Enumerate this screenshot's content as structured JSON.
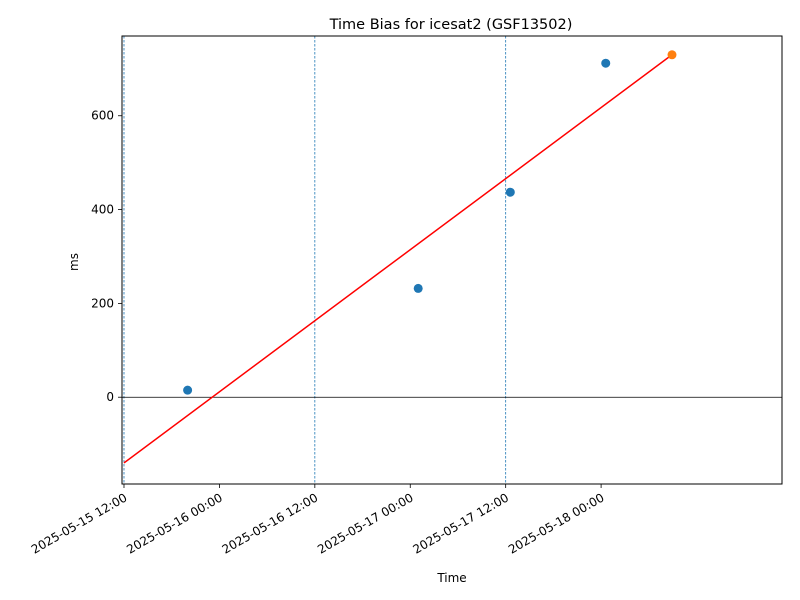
{
  "chart_data": {
    "type": "scatter",
    "title": "Time Bias for icesat2 (GSF13502)",
    "xlabel": "Time",
    "ylabel": "ms",
    "x_tick_labels": [
      "2025-05-15 12:00",
      "2025-05-16 00:00",
      "2025-05-16 12:00",
      "2025-05-17 00:00",
      "2025-05-17 12:00",
      "2025-05-18 00:00"
    ],
    "y_ticks": [
      0,
      200,
      400,
      600
    ],
    "y_tick_labels": [
      "0",
      "200",
      "400",
      "600"
    ],
    "x_range": [
      "2025-05-15 11:45",
      "2025-05-18 22:45"
    ],
    "ylim": [
      -185,
      770
    ],
    "vertical_markers": [
      "2025-05-15 12:00",
      "2025-05-16 12:00",
      "2025-05-17 12:00"
    ],
    "zero_line": 0,
    "grid": false,
    "series": [
      {
        "type": "scatter",
        "color": "#1f77b4",
        "points": [
          {
            "x": "2025-05-15 20:00",
            "y": 15
          },
          {
            "x": "2025-05-17 01:00",
            "y": 232
          },
          {
            "x": "2025-05-17 12:35",
            "y": 437
          },
          {
            "x": "2025-05-18 00:35",
            "y": 712
          }
        ]
      },
      {
        "type": "scatter",
        "color": "#ff7f0e",
        "points": [
          {
            "x": "2025-05-18 08:55",
            "y": 730
          }
        ]
      },
      {
        "type": "line",
        "color": "#ff0000",
        "points": [
          {
            "x": "2025-05-15 12:00",
            "y": -140
          },
          {
            "x": "2025-05-18 08:55",
            "y": 730
          }
        ]
      }
    ]
  }
}
